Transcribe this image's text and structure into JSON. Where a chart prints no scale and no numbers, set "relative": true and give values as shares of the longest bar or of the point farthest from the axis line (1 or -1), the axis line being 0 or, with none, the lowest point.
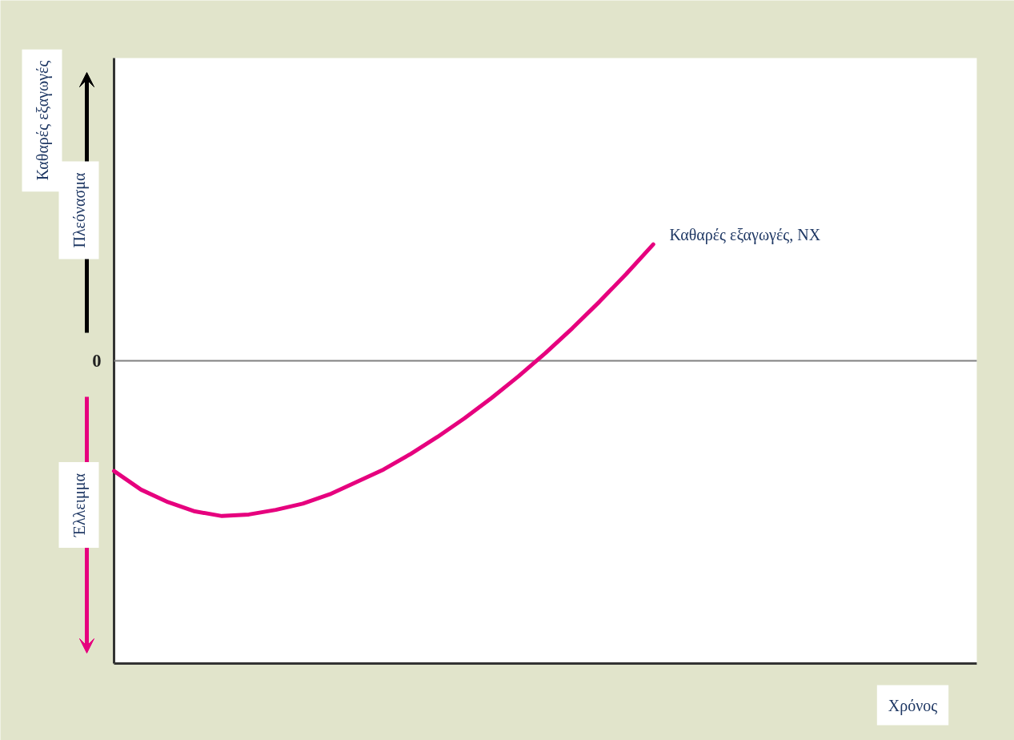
{
  "chart_data": {
    "type": "line",
    "relative": true,
    "categories": [
      null,
      null,
      null,
      null,
      null,
      null,
      null,
      null,
      null,
      null,
      null,
      null,
      null,
      null,
      null,
      null,
      null,
      null,
      null,
      null,
      null,
      null,
      null,
      null,
      null,
      null,
      null,
      null,
      null,
      null,
      null,
      null,
      null
    ],
    "series": [
      {
        "name": "Καθαρές εξαγωγές, NX",
        "color": "#e6007e",
        "values": [
          -0.71,
          -0.83,
          -0.91,
          -0.97,
          -1.0,
          -0.99,
          -0.96,
          -0.92,
          -0.86,
          -0.78,
          -0.7,
          -0.6,
          -0.49,
          -0.37,
          -0.24,
          -0.1,
          0.05,
          0.21,
          0.38,
          0.56,
          0.75,
          null,
          null,
          null,
          null,
          null,
          null,
          null,
          null,
          null,
          null,
          null,
          null
        ]
      }
    ],
    "ref_lines": [
      {
        "axis": "y",
        "value": 0,
        "label": "0",
        "color": "#808080"
      }
    ],
    "annotations": [
      "Καθαρές εξαγωγές",
      "Πλεόνασμα",
      "Έλλειμμα",
      "Χρόνος"
    ],
    "marker": "none",
    "line_style": "solid"
  }
}
